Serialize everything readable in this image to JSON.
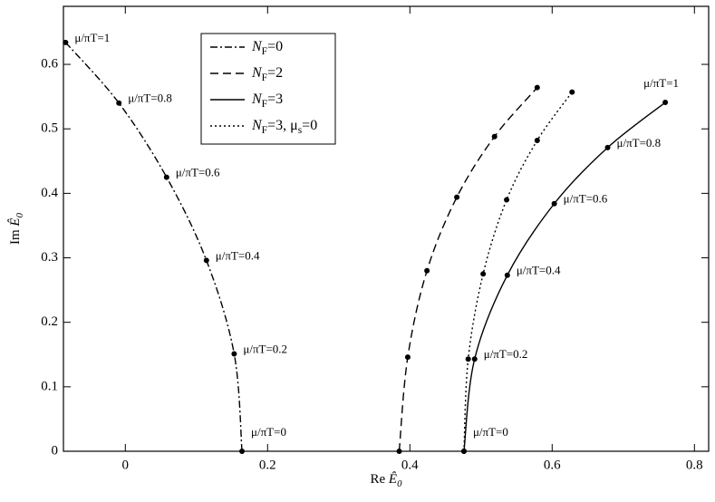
{
  "chart_data": {
    "type": "line",
    "xlabel": "Re Ê0",
    "ylabel": "Im Ê0",
    "xlim": [
      -0.087,
      0.82
    ],
    "ylim": [
      0,
      0.69
    ],
    "xticks": [
      0,
      0.2,
      0.4,
      0.6,
      0.8
    ],
    "yticks": [
      0,
      0.1,
      0.2,
      0.3,
      0.4,
      0.5,
      0.6
    ],
    "series": [
      {
        "name": "NF=0",
        "color": "#000",
        "dash": "dashdot",
        "x": [
          0.164,
          0.153,
          0.114,
          0.058,
          -0.009,
          -0.084
        ],
        "values": [
          0,
          0.151,
          0.296,
          0.425,
          0.54,
          0.634
        ],
        "point_labels": [
          "μ/πT=0",
          "μ/πT=0.2",
          "μ/πT=0.4",
          "μ/πT=0.6",
          "μ/πT=0.8",
          "μ/πT=1"
        ]
      },
      {
        "name": "NF=2",
        "color": "#000",
        "dash": "dashed",
        "x": [
          0.385,
          0.397,
          0.424,
          0.466,
          0.519,
          0.579
        ],
        "values": [
          0,
          0.146,
          0.28,
          0.394,
          0.488,
          0.564
        ]
      },
      {
        "name": "NF=3",
        "color": "#000",
        "dash": "solid",
        "x": [
          0.476,
          0.491,
          0.537,
          0.603,
          0.678,
          0.759
        ],
        "values": [
          0,
          0.143,
          0.273,
          0.384,
          0.471,
          0.541
        ],
        "point_labels": [
          "μ/πT=0",
          "μ/πT=0.2",
          "μ/πT=0.4",
          "μ/πT=0.6",
          "μ/πT=0.8",
          "μ/πT=1"
        ]
      },
      {
        "name": "NF=3, μs=0",
        "color": "#000",
        "dash": "dotted",
        "x": [
          0.476,
          0.482,
          0.503,
          0.536,
          0.579,
          0.628
        ],
        "values": [
          0,
          0.143,
          0.275,
          0.39,
          0.482,
          0.557
        ]
      }
    ]
  }
}
